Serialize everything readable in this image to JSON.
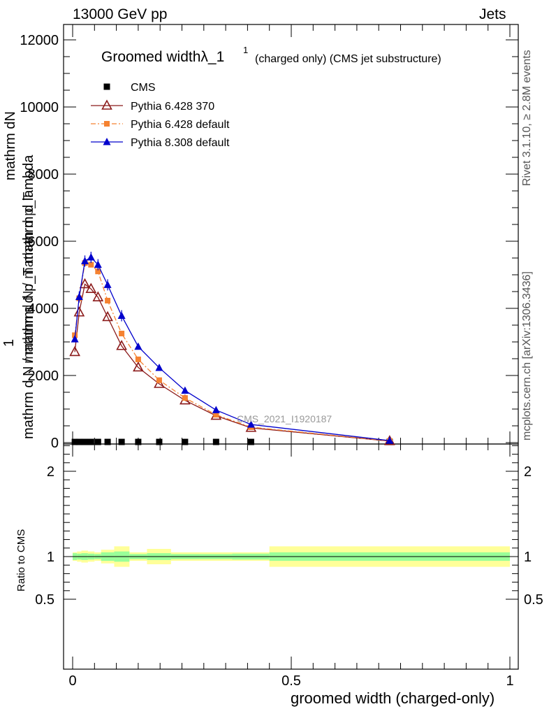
{
  "header": {
    "left": "13000 GeV pp",
    "right": "Jets"
  },
  "side_labels": {
    "rivet": "Rivet 3.1.10, ≥ 2.8M events",
    "mcplots": "mcplots.cern.ch [arXiv:1306.3436]"
  },
  "main_plot": {
    "title_main": "Groomed widthλ_1",
    "title_sup": "1",
    "title_suffix": "(charged only) (CMS jet substructure)",
    "watermark": "CMS_2021_I1920187",
    "ylabel_lines": [
      "mathrm dN",
      "mathrm d p_T mathrm d lambda",
      "1",
      "mathrm d N / mathrm d p_T"
    ],
    "ylabel_mid": "mathrm d p_T mathrm d p_T",
    "ylabel_full": "mathrm d N / mathrm d p_T mathrm d lambda"
  },
  "ratio_plot": {
    "ylabel": "Ratio to CMS"
  },
  "xlabel": "groomed width (charged-only)",
  "chart_data": {
    "type": "line",
    "xlabel": "groomed width (charged-only)",
    "ylabel": "mathrm dN / mathrm d p_T mathrm d lambda",
    "xlim": [
      0,
      1
    ],
    "ylim": [
      0,
      12500
    ],
    "yticks": [
      0,
      2000,
      4000,
      6000,
      8000,
      10000,
      12000
    ],
    "xticks": [
      0,
      0.5,
      1
    ],
    "xtick_labels": [
      "0",
      "0.5",
      "1"
    ],
    "ytick_labels": [
      "0",
      "2000",
      "4000",
      "6000",
      "8000",
      "10000",
      "12000"
    ],
    "x": [
      0.005,
      0.015,
      0.028,
      0.042,
      0.058,
      0.08,
      0.112,
      0.15,
      0.198,
      0.257,
      0.328,
      0.408,
      0.725
    ],
    "series": [
      {
        "name": "CMS",
        "marker": "square",
        "color": "#000000",
        "values": [
          20,
          20,
          20,
          20,
          20,
          20,
          20,
          20,
          20,
          20,
          20,
          20,
          20
        ]
      },
      {
        "name": "Pythia 6.428 370",
        "marker": "open-triangle",
        "color": "#8b1a1a",
        "values": [
          2700,
          3880,
          4720,
          4580,
          4330,
          3740,
          2880,
          2240,
          1750,
          1260,
          800,
          440,
          45
        ]
      },
      {
        "name": "Pythia 6.428 default",
        "marker": "filled-square",
        "color": "#f58231",
        "values": [
          3200,
          4300,
          5350,
          5300,
          5100,
          4230,
          3250,
          2480,
          1860,
          1330,
          830,
          460,
          50
        ]
      },
      {
        "name": "Pythia 8.308 default",
        "marker": "filled-triangle",
        "color": "#0000cc",
        "values": [
          3080,
          4340,
          5410,
          5520,
          5300,
          4700,
          3780,
          2860,
          2230,
          1550,
          970,
          540,
          60
        ]
      }
    ],
    "ratio": {
      "ylabel": "Ratio to CMS",
      "ylim": [
        0.4,
        2.4
      ],
      "yticks": [
        0.5,
        1,
        2
      ],
      "ytick_labels": [
        "0.5",
        "1",
        "2"
      ],
      "bin_edges": [
        0,
        0.01,
        0.02,
        0.035,
        0.05,
        0.065,
        0.095,
        0.13,
        0.17,
        0.225,
        0.29,
        0.365,
        0.45,
        1.0
      ],
      "green_halfwidth": [
        0.04,
        0.035,
        0.04,
        0.035,
        0.03,
        0.05,
        0.06,
        0.03,
        0.04,
        0.03,
        0.03,
        0.035,
        0.05
      ],
      "yellow_halfwidth": [
        0.05,
        0.06,
        0.07,
        0.06,
        0.05,
        0.08,
        0.12,
        0.05,
        0.09,
        0.05,
        0.05,
        0.05,
        0.12
      ]
    },
    "legend_position": "top-left",
    "grid": false
  }
}
